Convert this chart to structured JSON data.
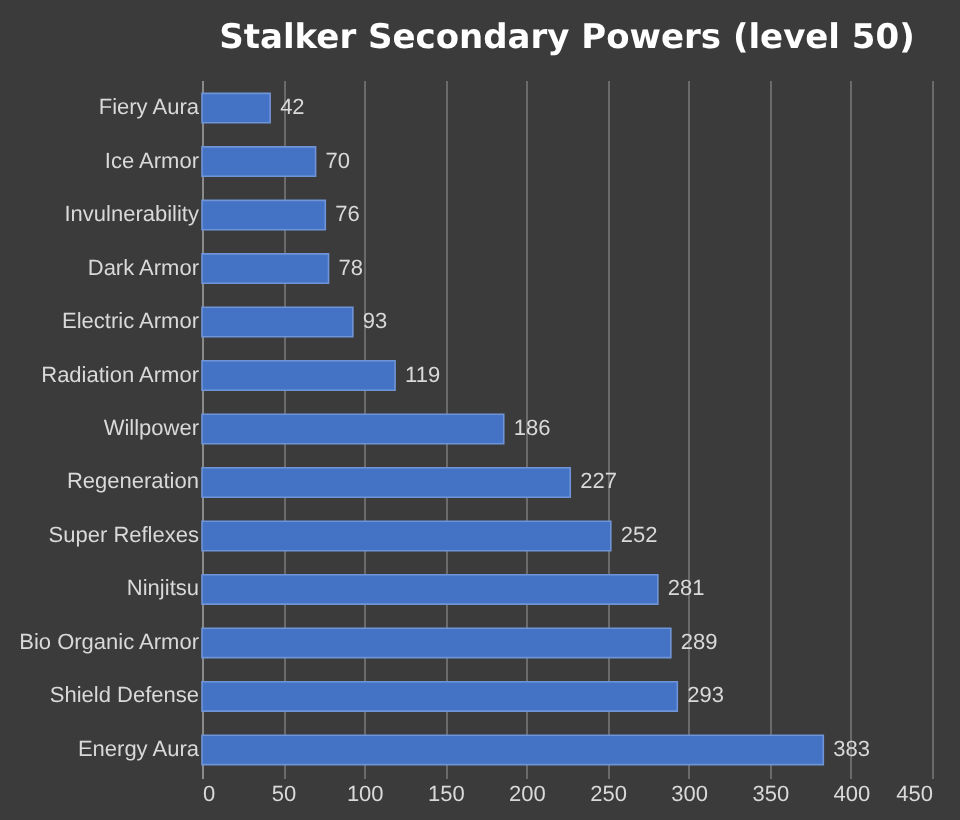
{
  "chart_data": {
    "type": "bar",
    "orientation": "horizontal",
    "title": "Stalker Secondary Powers (level 50)",
    "categories": [
      "Fiery Aura",
      "Ice Armor",
      "Invulnerability",
      "Dark Armor",
      "Electric Armor",
      "Radiation Armor",
      "Willpower",
      "Regeneration",
      "Super Reflexes",
      "Ninjitsu",
      "Bio Organic Armor",
      "Shield Defense",
      "Energy Aura"
    ],
    "values": [
      42,
      70,
      76,
      78,
      93,
      119,
      186,
      227,
      252,
      281,
      289,
      293,
      383
    ],
    "color": "#4472c4",
    "xlim": [
      0,
      450
    ],
    "xticks": [
      0,
      50,
      100,
      150,
      200,
      250,
      300,
      350,
      400,
      450
    ],
    "grid": "x",
    "data_labels": true
  }
}
